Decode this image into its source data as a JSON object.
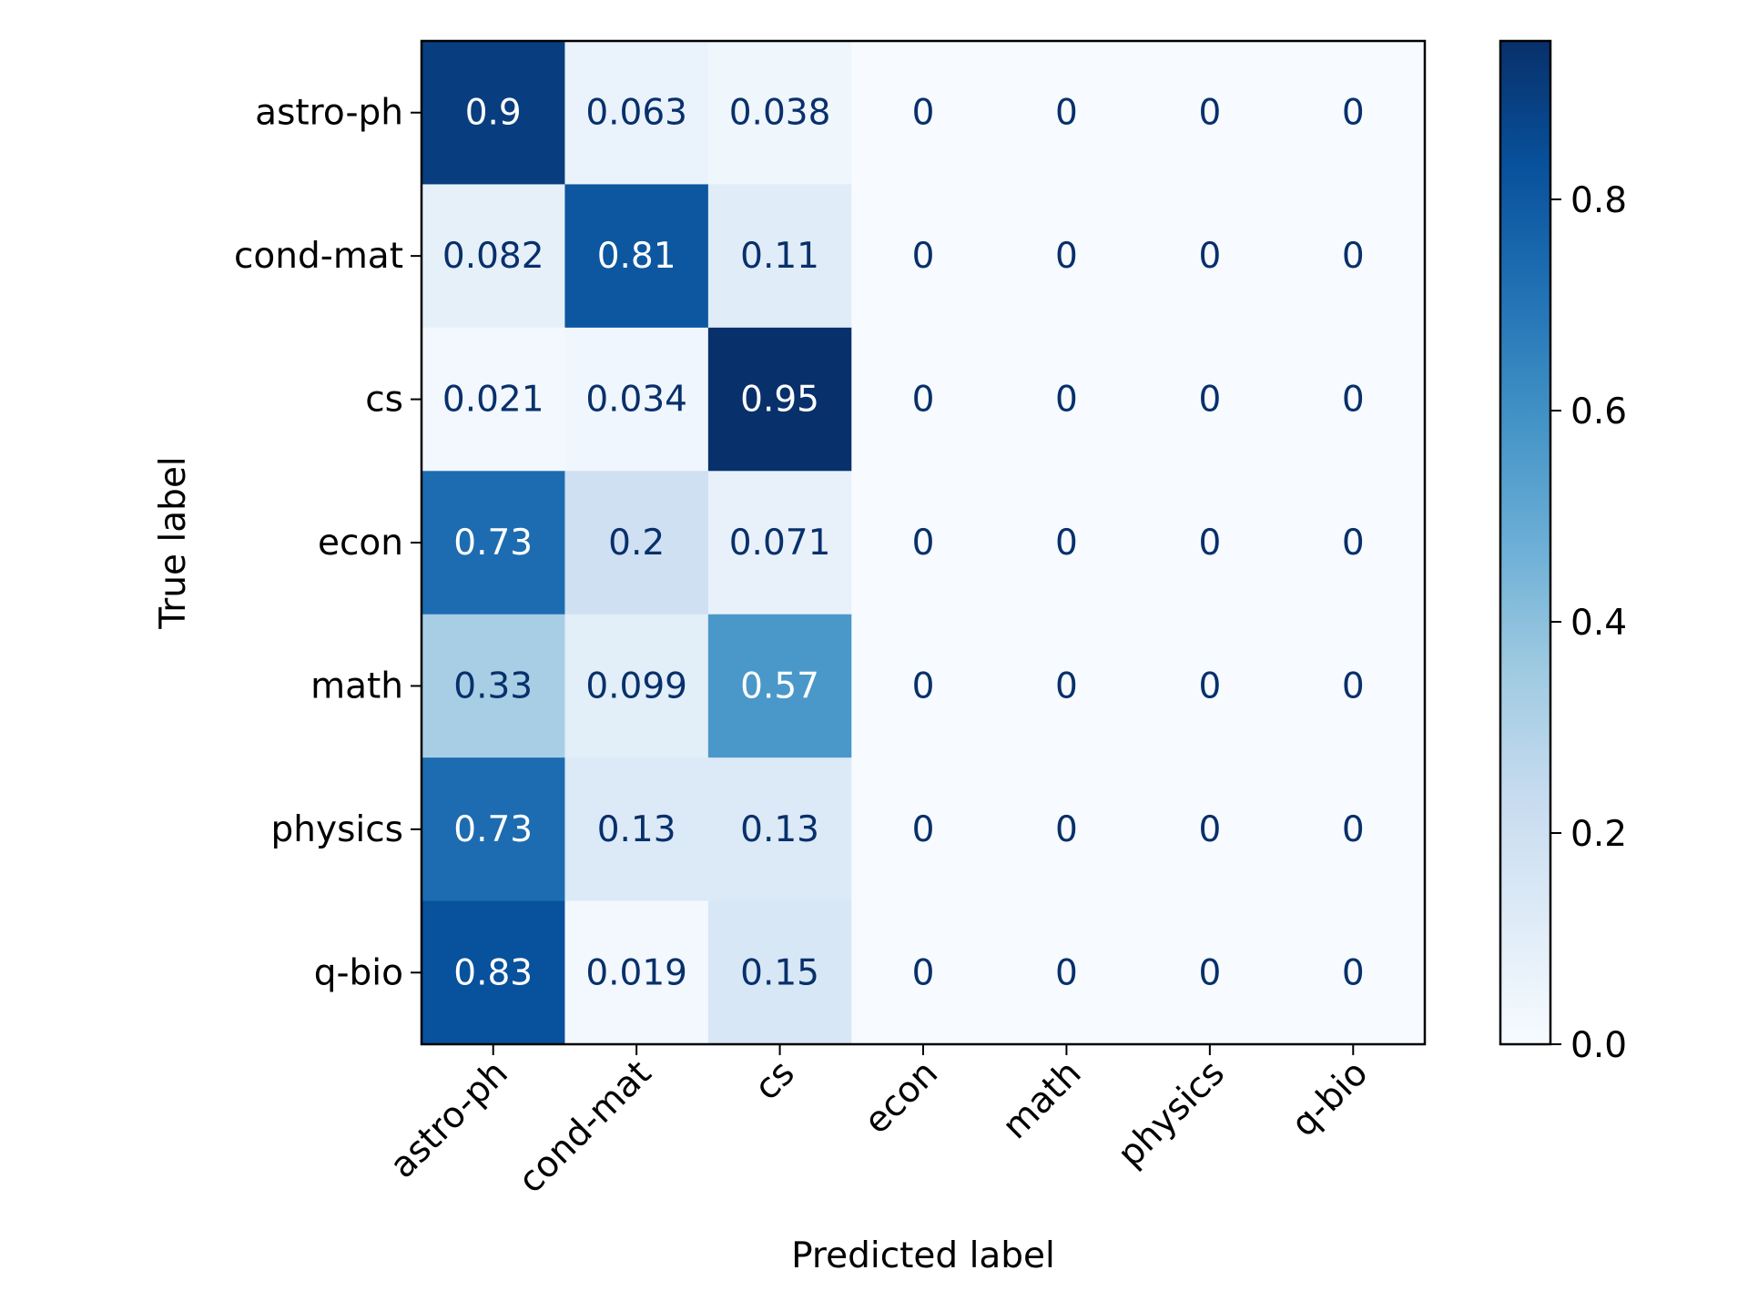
{
  "chart_data": {
    "type": "heatmap",
    "title": "",
    "xlabel": "Predicted label",
    "ylabel": "True label",
    "x_categories": [
      "astro-ph",
      "cond-mat",
      "cs",
      "econ",
      "math",
      "physics",
      "q-bio"
    ],
    "y_categories": [
      "astro-ph",
      "cond-mat",
      "cs",
      "econ",
      "math",
      "physics",
      "q-bio"
    ],
    "values": [
      [
        0.9,
        0.063,
        0.038,
        0,
        0,
        0,
        0
      ],
      [
        0.082,
        0.81,
        0.11,
        0,
        0,
        0,
        0
      ],
      [
        0.021,
        0.034,
        0.95,
        0,
        0,
        0,
        0
      ],
      [
        0.73,
        0.2,
        0.071,
        0,
        0,
        0,
        0
      ],
      [
        0.33,
        0.099,
        0.57,
        0,
        0,
        0,
        0
      ],
      [
        0.73,
        0.13,
        0.13,
        0,
        0,
        0,
        0
      ],
      [
        0.83,
        0.019,
        0.15,
        0,
        0,
        0,
        0
      ]
    ],
    "cell_labels": [
      [
        "0.9",
        "0.063",
        "0.038",
        "0",
        "0",
        "0",
        "0"
      ],
      [
        "0.082",
        "0.81",
        "0.11",
        "0",
        "0",
        "0",
        "0"
      ],
      [
        "0.021",
        "0.034",
        "0.95",
        "0",
        "0",
        "0",
        "0"
      ],
      [
        "0.73",
        "0.2",
        "0.071",
        "0",
        "0",
        "0",
        "0"
      ],
      [
        "0.33",
        "0.099",
        "0.57",
        "0",
        "0",
        "0",
        "0"
      ],
      [
        "0.73",
        "0.13",
        "0.13",
        "0",
        "0",
        "0",
        "0"
      ],
      [
        "0.83",
        "0.019",
        "0.15",
        "0",
        "0",
        "0",
        "0"
      ]
    ],
    "colormap": "Blues",
    "colorbar": {
      "range": [
        0,
        0.95
      ],
      "ticks": [
        0.0,
        0.2,
        0.4,
        0.6,
        0.8
      ],
      "tick_labels": [
        "0.0",
        "0.2",
        "0.4",
        "0.6",
        "0.8"
      ]
    },
    "text_colors": {
      "dark_cell": "#ffffff",
      "light_cell": "#08306b"
    },
    "grid": false
  }
}
